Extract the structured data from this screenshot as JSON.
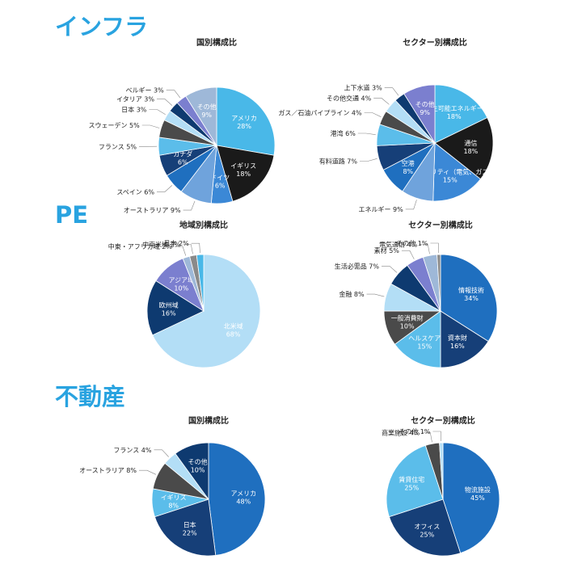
{
  "sections": [
    {
      "title": "インフラ",
      "charts": [
        {
          "title": "国別構成比",
          "startIndex": 9,
          "slices": [
            {
              "name": "アメリカ",
              "value": 28,
              "inside": true
            },
            {
              "name": "イギリス",
              "value": 18,
              "inside": true
            },
            {
              "name": "ドイツ",
              "value": 6,
              "inside": true
            },
            {
              "name": "オーストラリア",
              "value": 9,
              "inside": false
            },
            {
              "name": "スペイン",
              "value": 6,
              "inside": false
            },
            {
              "name": "カナダ",
              "value": 6,
              "inside": true
            },
            {
              "name": "フランス",
              "value": 5,
              "inside": false
            },
            {
              "name": "スウェーデン",
              "value": 5,
              "inside": false
            },
            {
              "name": "日本",
              "value": 3,
              "inside": false
            },
            {
              "name": "イタリア",
              "value": 3,
              "inside": false
            },
            {
              "name": "ベルギー",
              "value": 3,
              "inside": false
            },
            {
              "name": "その他",
              "value": 9,
              "inside": true
            }
          ]
        },
        {
          "title": "セクター別構成比",
          "startIndex": 9,
          "slices": [
            {
              "name": "再生可能エネルギー",
              "value": 18,
              "inside": true
            },
            {
              "name": "通信",
              "value": 18,
              "inside": true
            },
            {
              "name": "ユーティリティ（電気、ガス）",
              "value": 15,
              "inside": true
            },
            {
              "name": "エネルギー",
              "value": 9,
              "inside": false
            },
            {
              "name": "空港",
              "value": 8,
              "inside": true
            },
            {
              "name": "有料道路",
              "value": 7,
              "inside": false
            },
            {
              "name": "港湾",
              "value": 6,
              "inside": false
            },
            {
              "name": "ガス／石油パイプライン",
              "value": 4,
              "inside": false
            },
            {
              "name": "その他交通",
              "value": 4,
              "inside": false
            },
            {
              "name": "上下水道",
              "value": 3,
              "inside": false
            },
            {
              "name": "その他",
              "value": 9,
              "inside": true
            }
          ]
        }
      ]
    },
    {
      "title": "PE",
      "charts": [
        {
          "title": "地域別構成比",
          "startIndex": 4,
          "slices": [
            {
              "name": "北米域",
              "value": 68,
              "inside": true
            },
            {
              "name": "欧州域",
              "value": 16,
              "inside": true
            },
            {
              "name": "アジア域",
              "value": 10,
              "inside": true
            },
            {
              "name": "中東・アフリカ域",
              "value": 2,
              "inside": false
            },
            {
              "name": "中南米域",
              "value": 2,
              "inside": false
            },
            {
              "name": "日本",
              "value": 2,
              "inside": false
            }
          ]
        },
        {
          "title": "セクター別構成比",
          "startIndex": 0,
          "slices": [
            {
              "name": "情報技術",
              "value": 34,
              "inside": true
            },
            {
              "name": "資本財",
              "value": 16,
              "inside": true
            },
            {
              "name": "ヘルスケア",
              "value": 15,
              "inside": true
            },
            {
              "name": "一般消費財",
              "value": 10,
              "inside": true
            },
            {
              "name": "金融",
              "value": 8,
              "inside": false
            },
            {
              "name": "生活必需品",
              "value": 7,
              "inside": false
            },
            {
              "name": "素材",
              "value": 5,
              "inside": false
            },
            {
              "name": "電気通信",
              "value": 4,
              "inside": false
            },
            {
              "name": "その他",
              "value": 1,
              "inside": false
            }
          ]
        }
      ]
    },
    {
      "title": "不動産",
      "charts": [
        {
          "title": "国別構成比",
          "startIndex": 0,
          "slices": [
            {
              "name": "アメリカ",
              "value": 48,
              "inside": true
            },
            {
              "name": "日本",
              "value": 22,
              "inside": true
            },
            {
              "name": "イギリス",
              "value": 8,
              "inside": true
            },
            {
              "name": "オーストラリア",
              "value": 8,
              "inside": false
            },
            {
              "name": "フランス",
              "value": 4,
              "inside": false
            },
            {
              "name": "その他",
              "value": 10,
              "inside": true
            }
          ]
        },
        {
          "title": "セクター別構成比",
          "startIndex": 0,
          "slices": [
            {
              "name": "物流施設",
              "value": 45,
              "inside": true
            },
            {
              "name": "オフィス",
              "value": 25,
              "inside": true
            },
            {
              "name": "賃貸住宅",
              "value": 25,
              "inside": true
            },
            {
              "name": "商業施設",
              "value": 4,
              "inside": false
            },
            {
              "name": "その他",
              "value": 1,
              "inside": false
            }
          ]
        }
      ]
    }
  ],
  "chart_data": [
    {
      "type": "pie",
      "title": "国別構成比",
      "categories": [
        "アメリカ",
        "イギリス",
        "ドイツ",
        "オーストラリア",
        "スペイン",
        "カナダ",
        "フランス",
        "スウェーデン",
        "日本",
        "イタリア",
        "ベルギー",
        "その他"
      ],
      "values": [
        28,
        18,
        6,
        9,
        6,
        6,
        5,
        5,
        3,
        3,
        3,
        9
      ]
    },
    {
      "type": "pie",
      "title": "セクター別構成比",
      "categories": [
        "再生可能エネルギー",
        "通信",
        "ユーティリティ（電気、ガス）",
        "エネルギー",
        "空港",
        "有料道路",
        "港湾",
        "ガス／石油パイプライン",
        "その他交通",
        "上下水道",
        "その他"
      ],
      "values": [
        18,
        18,
        15,
        9,
        8,
        7,
        6,
        4,
        4,
        3,
        9
      ]
    },
    {
      "type": "pie",
      "title": "地域別構成比",
      "categories": [
        "北米域",
        "欧州域",
        "アジア域",
        "中東・アフリカ域",
        "中南米域",
        "日本"
      ],
      "values": [
        68,
        16,
        10,
        2,
        2,
        2
      ]
    },
    {
      "type": "pie",
      "title": "セクター別構成比",
      "categories": [
        "情報技術",
        "資本財",
        "ヘルスケア",
        "一般消費財",
        "金融",
        "生活必需品",
        "素材",
        "電気通信",
        "その他"
      ],
      "values": [
        34,
        16,
        15,
        10,
        8,
        7,
        5,
        4,
        1
      ]
    },
    {
      "type": "pie",
      "title": "国別構成比",
      "categories": [
        "アメリカ",
        "日本",
        "イギリス",
        "オーストラリア",
        "フランス",
        "その他"
      ],
      "values": [
        48,
        22,
        8,
        8,
        4,
        10
      ]
    },
    {
      "type": "pie",
      "title": "セクター別構成比",
      "categories": [
        "物流施設",
        "オフィス",
        "賃貸住宅",
        "商業施設",
        "その他"
      ],
      "values": [
        45,
        25,
        25,
        4,
        1
      ]
    }
  ],
  "palette": [
    "#1f6fbf",
    "#163f78",
    "#5bbdea",
    "#4a4a4a",
    "#b3def6",
    "#0e3a70",
    "#7b7fcf",
    "#9eb8d8",
    "#8a8a8a",
    "#49b8e8",
    "#1a1a1a",
    "#3b88d6",
    "#6fa3dc"
  ]
}
